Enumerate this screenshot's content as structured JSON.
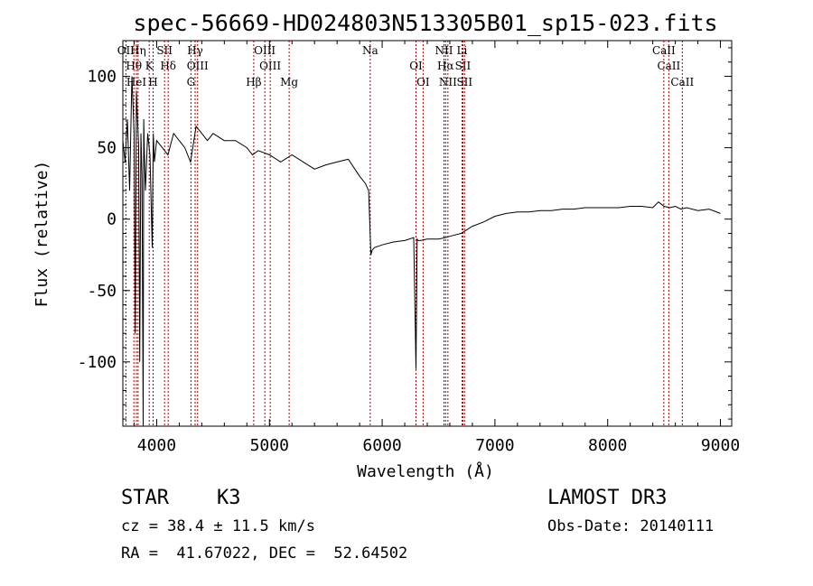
{
  "chart_data": {
    "type": "line",
    "title": "spec-56669-HD024803N513305B01_sp15-023.fits",
    "xlabel": "Wavelength (Å)",
    "ylabel": "Flux (relative)",
    "xlim": [
      3700,
      9100
    ],
    "ylim": [
      -145,
      125
    ],
    "xticks": [
      4000,
      5000,
      6000,
      7000,
      8000,
      9000
    ],
    "yticks": [
      -100,
      -50,
      0,
      50,
      100
    ],
    "series": [
      {
        "name": "spectrum",
        "x": [
          3700,
          3720,
          3740,
          3760,
          3780,
          3800,
          3810,
          3820,
          3840,
          3850,
          3860,
          3870,
          3880,
          3885,
          3890,
          3900,
          3920,
          3940,
          3960,
          3970,
          3980,
          4000,
          4050,
          4100,
          4150,
          4200,
          4250,
          4300,
          4350,
          4400,
          4450,
          4500,
          4600,
          4700,
          4800,
          4850,
          4900,
          5000,
          5100,
          5200,
          5300,
          5400,
          5500,
          5600,
          5700,
          5800,
          5850,
          5880,
          5900,
          5910,
          5930,
          6000,
          6100,
          6200,
          6280,
          6300,
          6310,
          6320,
          6340,
          6400,
          6500,
          6560,
          6600,
          6700,
          6800,
          6900,
          7000,
          7100,
          7200,
          7300,
          7400,
          7500,
          7600,
          7700,
          7800,
          7900,
          8000,
          8100,
          8200,
          8300,
          8400,
          8450,
          8500,
          8550,
          8600,
          8650,
          8700,
          8800,
          8900,
          9000
        ],
        "y": [
          55,
          40,
          70,
          20,
          100,
          60,
          -80,
          90,
          50,
          -100,
          60,
          30,
          -145,
          70,
          50,
          20,
          60,
          45,
          -20,
          60,
          40,
          55,
          50,
          45,
          60,
          55,
          50,
          40,
          65,
          60,
          55,
          60,
          55,
          55,
          50,
          45,
          48,
          45,
          40,
          45,
          40,
          35,
          38,
          40,
          42,
          30,
          25,
          20,
          -25,
          -22,
          -20,
          -18,
          -16,
          -15,
          -13,
          -105,
          -14,
          -15,
          -15,
          -14,
          -14,
          -13,
          -12,
          -10,
          -5,
          -2,
          2,
          4,
          5,
          5,
          6,
          6,
          7,
          7,
          8,
          8,
          8,
          8,
          9,
          9,
          8,
          12,
          9,
          8,
          9,
          7,
          8,
          6,
          7,
          4
        ]
      }
    ],
    "emission_lines": [
      {
        "name": "OII",
        "wave": 3727
      },
      {
        "name": "Hθ",
        "wave": 3798
      },
      {
        "name": "HeI",
        "wave": 3820
      },
      {
        "name": "Hη",
        "wave": 3835
      },
      {
        "name": "K",
        "wave": 3934
      },
      {
        "name": "H",
        "wave": 3968
      },
      {
        "name": "SII",
        "wave": 4070
      },
      {
        "name": "Hδ",
        "wave": 4102
      },
      {
        "name": "G",
        "wave": 4304
      },
      {
        "name": "Hγ",
        "wave": 4341
      },
      {
        "name": "OIII",
        "wave": 4363
      },
      {
        "name": "Hβ",
        "wave": 4861
      },
      {
        "name": "OIII",
        "wave": 4959
      },
      {
        "name": "OIII",
        "wave": 5007
      },
      {
        "name": "Mg",
        "wave": 5175
      },
      {
        "name": "Na",
        "wave": 5894
      },
      {
        "name": "OI",
        "wave": 6300
      },
      {
        "name": "OI",
        "wave": 6363
      },
      {
        "name": "NII",
        "wave": 6548
      },
      {
        "name": "Hα",
        "wave": 6563
      },
      {
        "name": "NII",
        "wave": 6583
      },
      {
        "name": "Li",
        "wave": 6708
      },
      {
        "name": "SII",
        "wave": 6716
      },
      {
        "name": "SII",
        "wave": 6731
      },
      {
        "name": "CaII",
        "wave": 8498
      },
      {
        "name": "CaII",
        "wave": 8542
      },
      {
        "name": "CaII",
        "wave": 8662
      }
    ]
  },
  "info": {
    "object_class": "STAR",
    "subclass": "K3",
    "survey": "LAMOST DR3",
    "cz": "cz = 38.4 ± 11.5 km/s",
    "obs_date": "Obs-Date: 20140111",
    "radec": "RA =  41.67022, DEC =  52.64502"
  },
  "colors": {
    "line_marker": "#aa0000",
    "spectrum": "#000000"
  }
}
